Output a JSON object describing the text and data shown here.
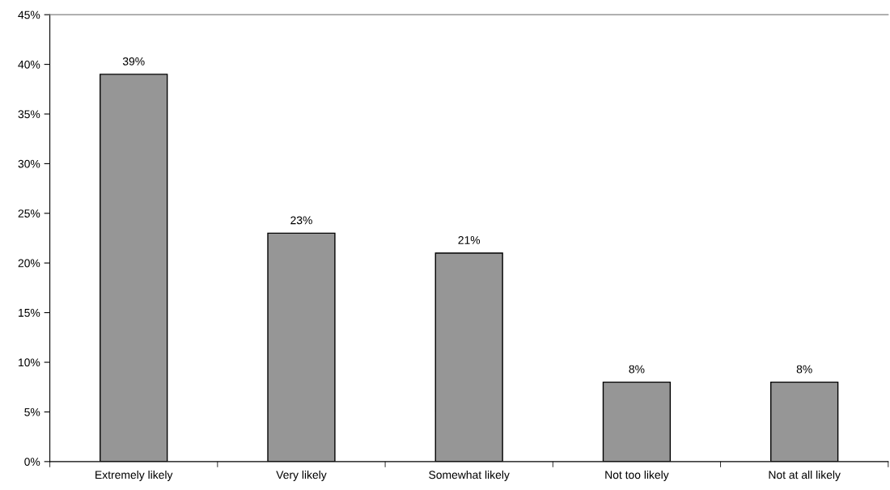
{
  "chart_data": {
    "type": "bar",
    "categories": [
      "Extremely likely",
      "Very likely",
      "Somewhat likely",
      "Not too likely",
      "Not at all likely"
    ],
    "values": [
      39,
      23,
      21,
      8,
      8
    ],
    "color": "#969696",
    "value_labels": [
      "39%",
      "23%",
      "21%",
      "8%",
      "8%"
    ],
    "ylim": [
      0,
      45
    ],
    "yticks": [
      {
        "value": 0,
        "label": "0%"
      },
      {
        "value": 5,
        "label": "5%"
      },
      {
        "value": 10,
        "label": "10%"
      },
      {
        "value": 15,
        "label": "15%"
      },
      {
        "value": 20,
        "label": "20%"
      },
      {
        "value": 25,
        "label": "25%"
      },
      {
        "value": 30,
        "label": "30%"
      },
      {
        "value": 35,
        "label": "35%"
      },
      {
        "value": 40,
        "label": "40%"
      },
      {
        "value": 45,
        "label": "45%"
      }
    ],
    "grid": false
  }
}
